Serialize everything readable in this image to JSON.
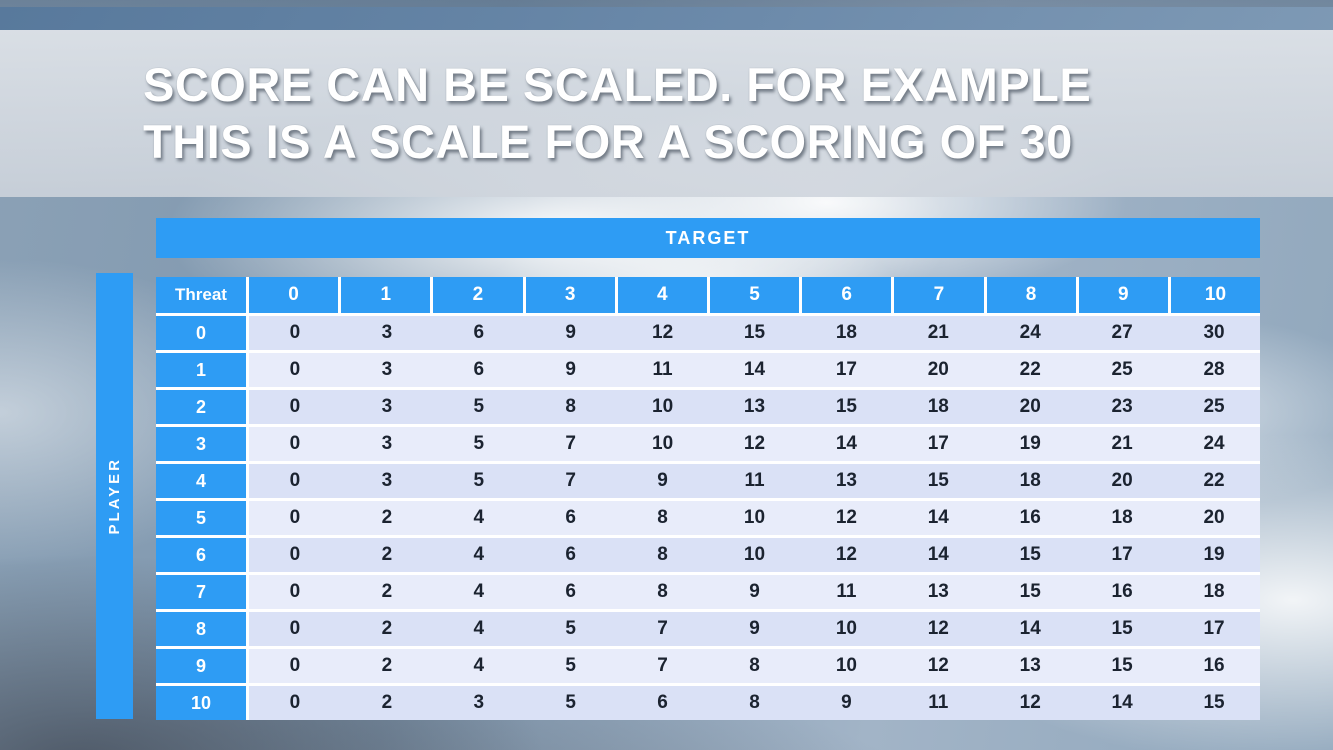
{
  "slide": {
    "title_line1": "SCORE CAN BE SCALED. FOR EXAMPLE",
    "title_line2": "THIS IS A SCALE FOR A SCORING OF 30"
  },
  "table": {
    "target_label": "TARGET",
    "player_label": "PLAYER",
    "threat_label": "Threat",
    "col_headers": [
      "0",
      "1",
      "2",
      "3",
      "4",
      "5",
      "6",
      "7",
      "8",
      "9",
      "10"
    ],
    "rows": [
      {
        "threat": "0",
        "values": [
          "0",
          "3",
          "6",
          "9",
          "12",
          "15",
          "18",
          "21",
          "24",
          "27",
          "30"
        ]
      },
      {
        "threat": "1",
        "values": [
          "0",
          "3",
          "6",
          "9",
          "11",
          "14",
          "17",
          "20",
          "22",
          "25",
          "28"
        ]
      },
      {
        "threat": "2",
        "values": [
          "0",
          "3",
          "5",
          "8",
          "10",
          "13",
          "15",
          "18",
          "20",
          "23",
          "25"
        ]
      },
      {
        "threat": "3",
        "values": [
          "0",
          "3",
          "5",
          "7",
          "10",
          "12",
          "14",
          "17",
          "19",
          "21",
          "24"
        ]
      },
      {
        "threat": "4",
        "values": [
          "0",
          "3",
          "5",
          "7",
          "9",
          "11",
          "13",
          "15",
          "18",
          "20",
          "22"
        ]
      },
      {
        "threat": "5",
        "values": [
          "0",
          "2",
          "4",
          "6",
          "8",
          "10",
          "12",
          "14",
          "16",
          "18",
          "20"
        ]
      },
      {
        "threat": "6",
        "values": [
          "0",
          "2",
          "4",
          "6",
          "8",
          "10",
          "12",
          "14",
          "15",
          "17",
          "19"
        ]
      },
      {
        "threat": "7",
        "values": [
          "0",
          "2",
          "4",
          "6",
          "8",
          "9",
          "11",
          "13",
          "15",
          "16",
          "18"
        ]
      },
      {
        "threat": "8",
        "values": [
          "0",
          "2",
          "4",
          "5",
          "7",
          "9",
          "10",
          "12",
          "14",
          "15",
          "17"
        ]
      },
      {
        "threat": "9",
        "values": [
          "0",
          "2",
          "4",
          "5",
          "7",
          "8",
          "10",
          "12",
          "13",
          "15",
          "16"
        ]
      },
      {
        "threat": "10",
        "values": [
          "0",
          "2",
          "3",
          "5",
          "6",
          "8",
          "9",
          "11",
          "12",
          "14",
          "15"
        ]
      }
    ]
  },
  "colors": {
    "header_blue": "#2e9cf4",
    "row_band_dark": "#dae1f6",
    "row_band_light": "#e8ecfa",
    "value_text": "#1b2330",
    "title_text": "#ffffff"
  }
}
